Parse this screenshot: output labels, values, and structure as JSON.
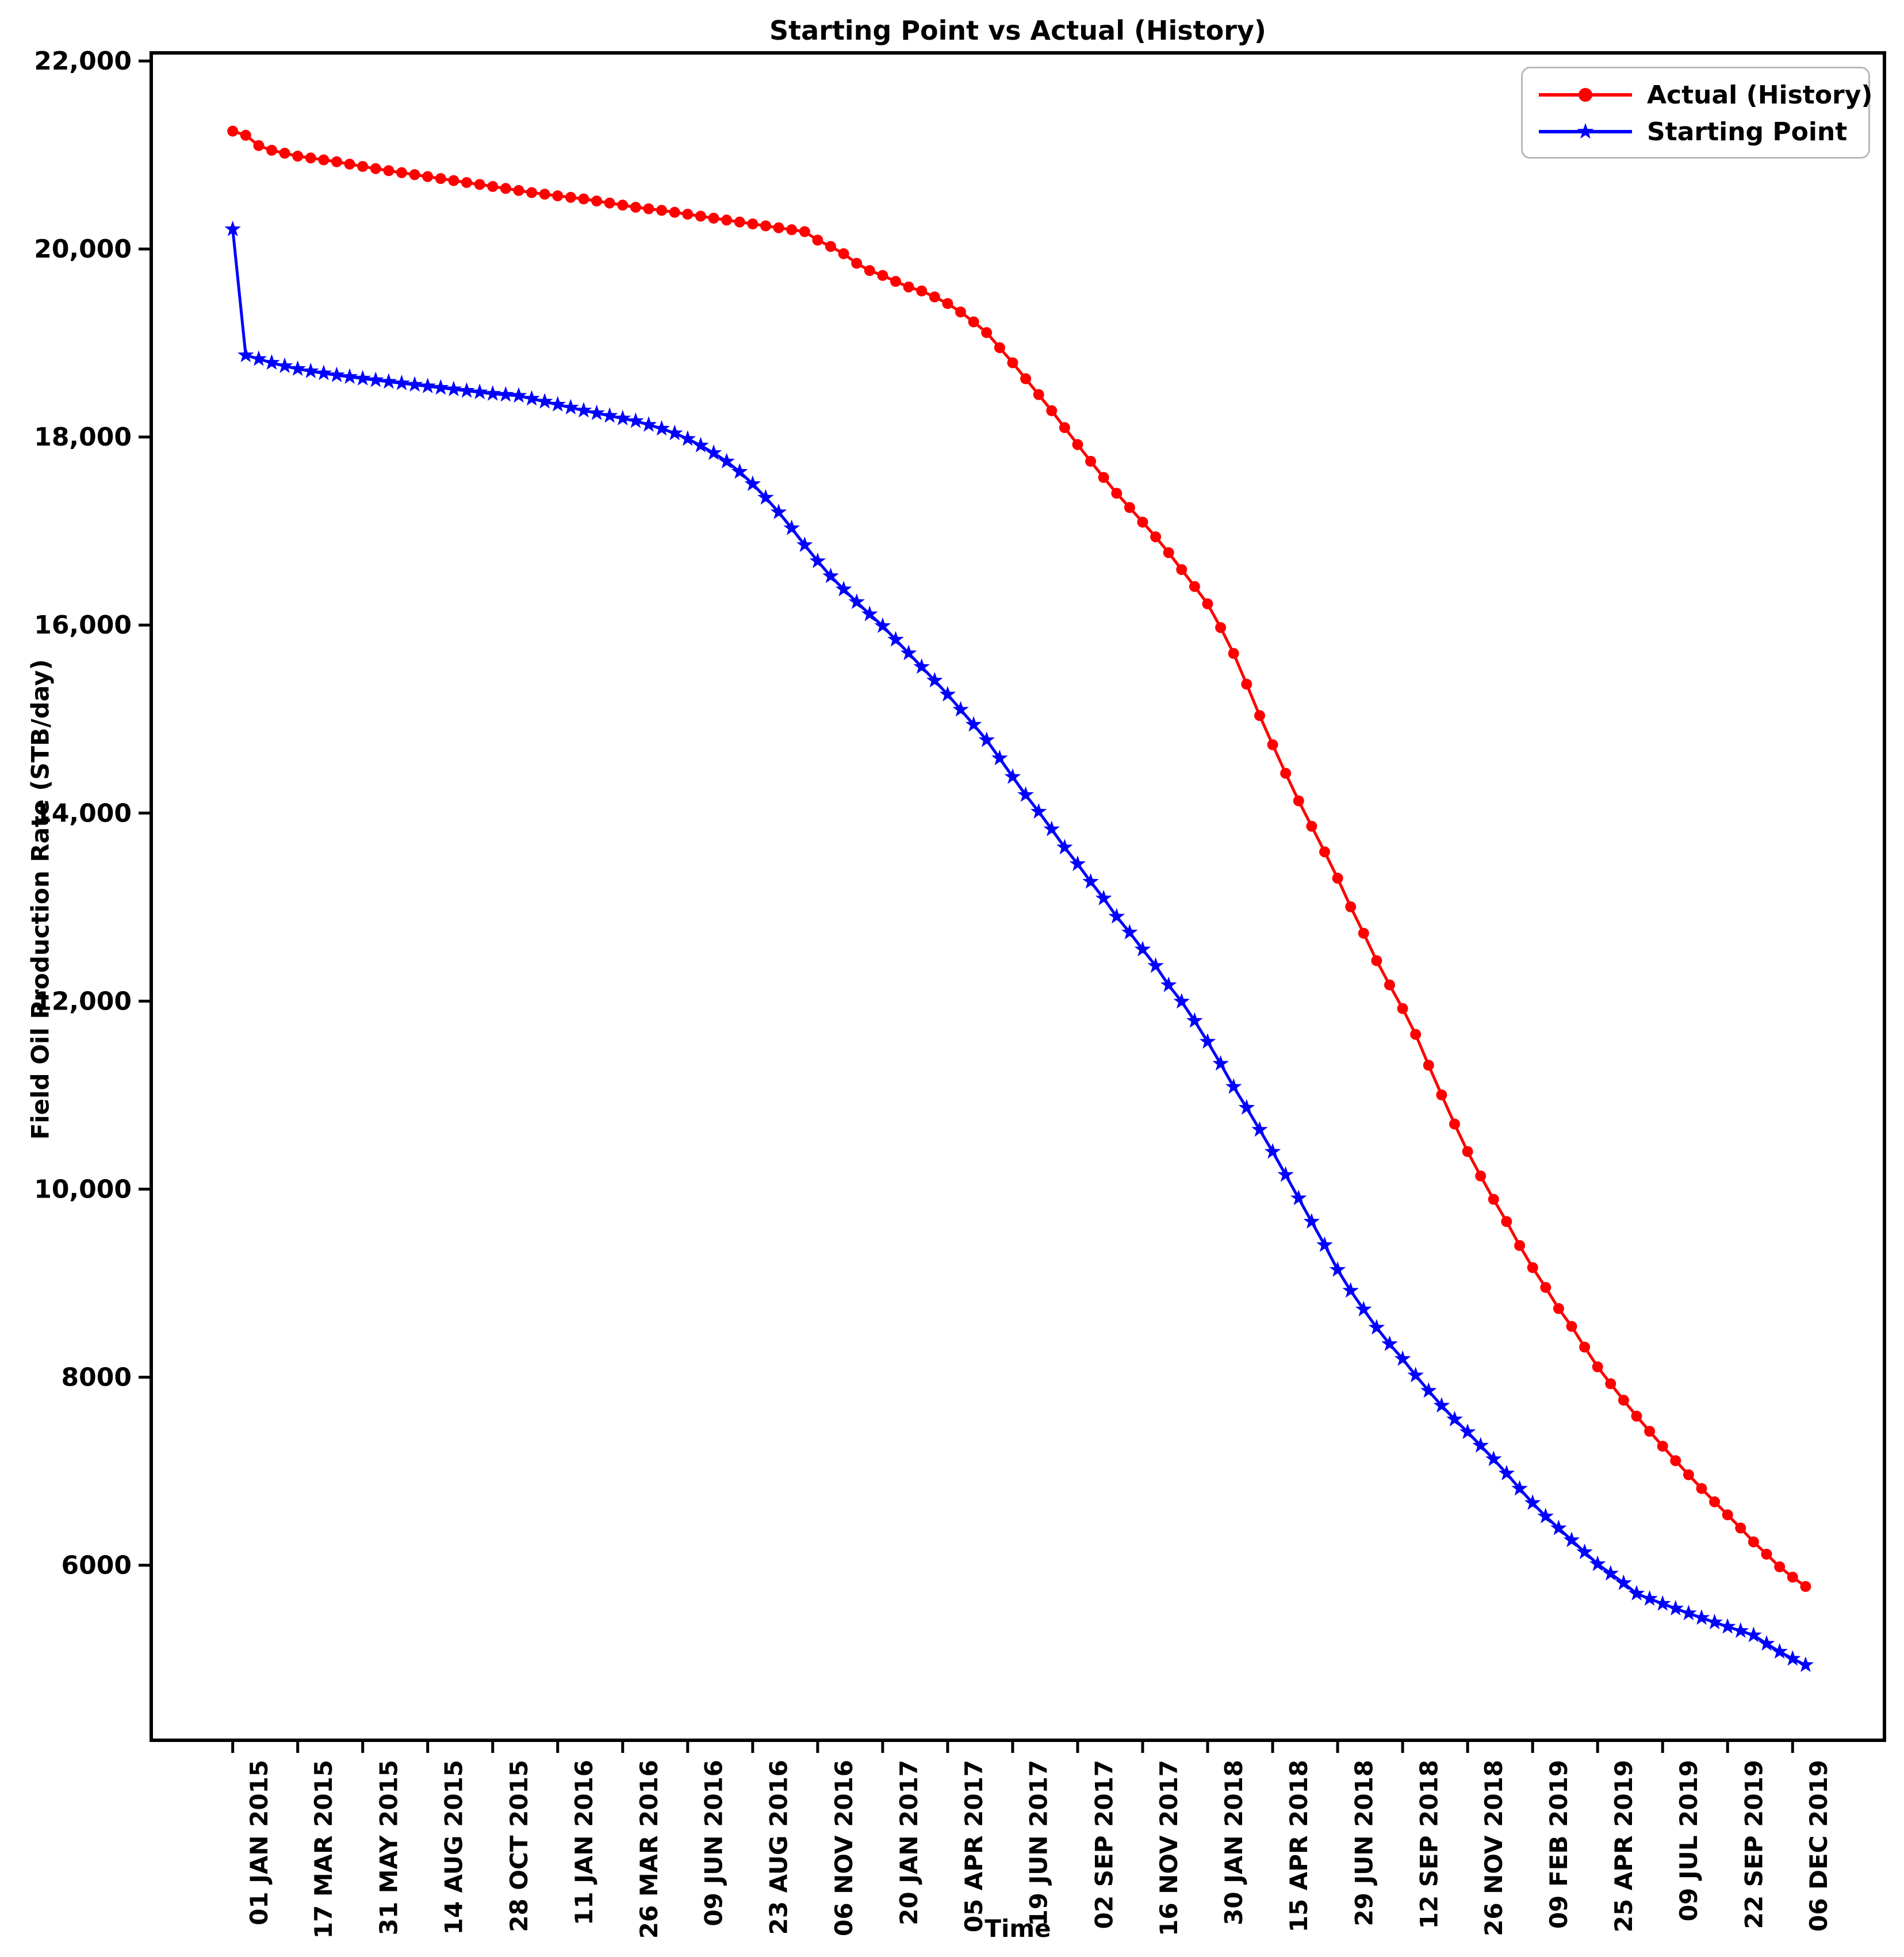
{
  "chart": {
    "title": "Starting Point vs Actual (History)",
    "xlabel": "Time",
    "ylabel": "Field Oil Production Rate (STB/day)"
  },
  "legend": {
    "entries": [
      {
        "label": "Actual (History)",
        "color": "#ff0000",
        "marker": "circle"
      },
      {
        "label": "Starting Point",
        "color": "#0000ff",
        "marker": "star"
      }
    ]
  },
  "chart_data": {
    "type": "line",
    "title": "Starting Point vs Actual (History)",
    "xlabel": "Time",
    "ylabel": "Field Oil Production Rate (STB/day)",
    "grid": false,
    "legend_position": "upper right",
    "x_unit": "days since 01 JAN 2015",
    "x_step_days": 15,
    "xlim_days": [
      -94,
      1906
    ],
    "ylim": [
      4138,
      22086
    ],
    "y_ticks": [
      22000,
      20000,
      18000,
      16000,
      14000,
      12000,
      10000,
      8000,
      6000
    ],
    "y_tick_labels": [
      "22,000",
      "20,000",
      "18,000",
      "16,000",
      "14,000",
      "12,000",
      "10,000",
      "8000",
      "6000"
    ],
    "x_tick_days": [
      0,
      75,
      150,
      225,
      300,
      375,
      450,
      525,
      600,
      675,
      750,
      825,
      900,
      975,
      1050,
      1125,
      1200,
      1275,
      1350,
      1425,
      1500,
      1575,
      1650,
      1725,
      1800
    ],
    "x_tick_labels": [
      "01 JAN 2015",
      "17 MAR 2015",
      "31 MAY 2015",
      "14 AUG 2015",
      "28 OCT 2015",
      "11 JAN 2016",
      "26 MAR 2016",
      "09 JUN 2016",
      "23 AUG 2016",
      "06 NOV 2016",
      "20 JAN 2017",
      "05 APR 2017",
      "19 JUN 2017",
      "02 SEP 2017",
      "16 NOV 2017",
      "30 JAN 2018",
      "15 APR 2018",
      "29 JUN 2018",
      "12 SEP 2018",
      "26 NOV 2018",
      "09 FEB 2019",
      "25 APR 2019",
      "09 JUL 2019",
      "22 SEP 2019",
      "06 DEC 2019"
    ],
    "x_days": [
      0,
      15,
      30,
      45,
      60,
      75,
      90,
      105,
      120,
      135,
      150,
      165,
      180,
      195,
      210,
      225,
      240,
      255,
      270,
      285,
      300,
      315,
      330,
      345,
      360,
      375,
      390,
      405,
      420,
      435,
      450,
      465,
      480,
      495,
      510,
      525,
      540,
      555,
      570,
      585,
      600,
      615,
      630,
      645,
      660,
      675,
      690,
      705,
      720,
      735,
      750,
      765,
      780,
      795,
      810,
      825,
      840,
      855,
      870,
      885,
      900,
      915,
      930,
      945,
      960,
      975,
      990,
      1005,
      1020,
      1035,
      1050,
      1065,
      1080,
      1095,
      1110,
      1125,
      1140,
      1155,
      1170,
      1185,
      1200,
      1215,
      1230,
      1245,
      1260,
      1275,
      1290,
      1305,
      1320,
      1335,
      1350,
      1365,
      1380,
      1395,
      1410,
      1425,
      1440,
      1455,
      1470,
      1485,
      1500,
      1515,
      1530,
      1545,
      1560,
      1575,
      1590,
      1605,
      1620,
      1635,
      1650,
      1665,
      1680,
      1695,
      1710,
      1725,
      1740,
      1755,
      1770,
      1785,
      1800,
      1815
    ],
    "series": [
      {
        "name": "Actual (History)",
        "color": "#ff0000",
        "marker": "circle",
        "values": [
          21254,
          21210,
          21100,
          21050,
          21019,
          20988,
          20968,
          20948,
          20928,
          20903,
          20878,
          20855,
          20833,
          20812,
          20791,
          20770,
          20749,
          20728,
          20707,
          20686,
          20665,
          20644,
          20622,
          20600,
          20583,
          20566,
          20549,
          20533,
          20511,
          20489,
          20467,
          20444,
          20428,
          20411,
          20390,
          20370,
          20349,
          20328,
          20308,
          20287,
          20267,
          20246,
          20226,
          20205,
          20185,
          20094,
          20027,
          19950,
          19848,
          19771,
          19719,
          19655,
          19596,
          19554,
          19490,
          19420,
          19330,
          19225,
          19111,
          18950,
          18790,
          18620,
          18452,
          18280,
          18100,
          17920,
          17742,
          17570,
          17402,
          17250,
          17095,
          16938,
          16770,
          16590,
          16410,
          16225,
          15973,
          15698,
          15371,
          15037,
          14727,
          14423,
          14130,
          13860,
          13588,
          13307,
          13003,
          12722,
          12430,
          12172,
          11921,
          11646,
          11318,
          11002,
          10692,
          10400,
          10140,
          9892,
          9655,
          9400,
          9165,
          8954,
          8730,
          8540,
          8320,
          8110,
          7930,
          7755,
          7585,
          7424,
          7266,
          7112,
          6962,
          6816,
          6674,
          6536,
          6395,
          6248,
          6117,
          5983,
          5873,
          5774
        ]
      },
      {
        "name": "Starting Point",
        "color": "#0000ff",
        "marker": "star",
        "values": [
          20210,
          18870,
          18830,
          18790,
          18755,
          18725,
          18700,
          18678,
          18658,
          18640,
          18622,
          18605,
          18588,
          18572,
          18556,
          18540,
          18524,
          18508,
          18492,
          18476,
          18460,
          18450,
          18439,
          18408,
          18377,
          18345,
          18314,
          18282,
          18254,
          18226,
          18198,
          18170,
          18130,
          18089,
          18040,
          17980,
          17910,
          17830,
          17740,
          17630,
          17500,
          17355,
          17200,
          17030,
          16851,
          16680,
          16520,
          16380,
          16245,
          16115,
          15990,
          15845,
          15700,
          15555,
          15410,
          15261,
          15100,
          14940,
          14776,
          14583,
          14385,
          14193,
          14015,
          13828,
          13635,
          13458,
          13270,
          13093,
          12899,
          12730,
          12550,
          12375,
          12170,
          11995,
          11790,
          11568,
          11334,
          11088,
          10866,
          10632,
          10398,
          10152,
          9903,
          9654,
          9405,
          9142,
          8920,
          8721,
          8527,
          8352,
          8194,
          8019,
          7855,
          7697,
          7551,
          7416,
          7272,
          7128,
          6976,
          6814,
          6662,
          6519,
          6393,
          6266,
          6139,
          6012,
          5911,
          5810,
          5698,
          5643,
          5590,
          5539,
          5489,
          5440,
          5392,
          5346,
          5301,
          5255,
          5165,
          5080,
          5005,
          4938
        ]
      }
    ]
  }
}
